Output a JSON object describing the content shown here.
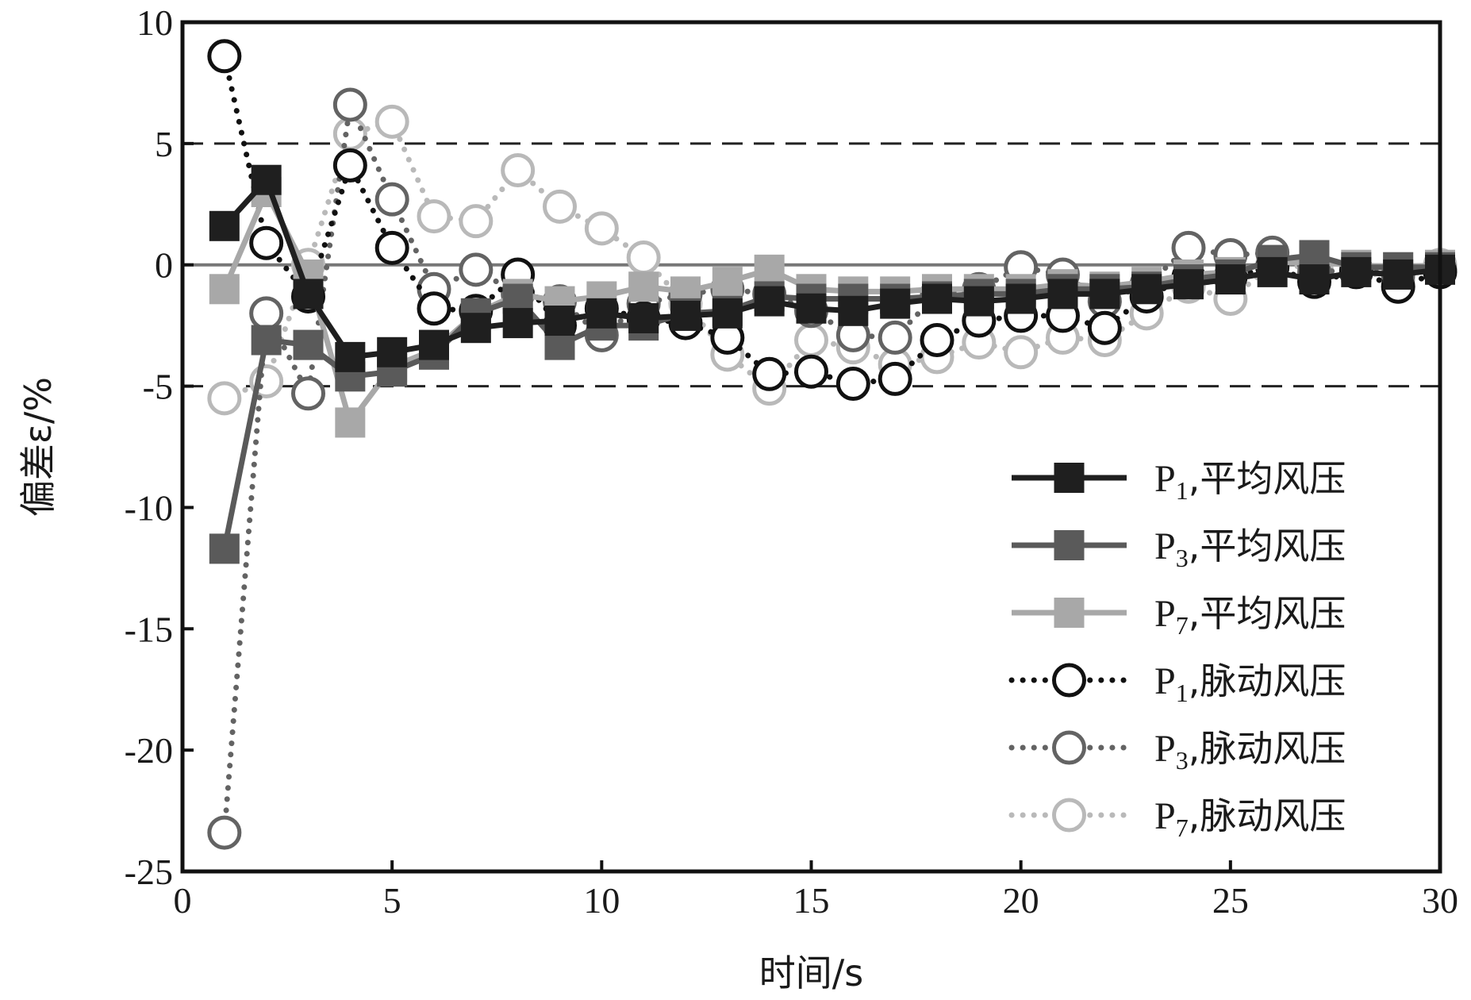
{
  "chart_data": {
    "type": "line",
    "xlabel": "时间/s",
    "ylabel": "偏差ε/%",
    "xlim": [
      0,
      30
    ],
    "ylim": [
      -25,
      10
    ],
    "xticks": [
      "0",
      "5",
      "10",
      "15",
      "20",
      "25",
      "30"
    ],
    "yticks": [
      "10",
      "5",
      "0",
      "-5",
      "-10",
      "-15",
      "-20",
      "-25"
    ],
    "reference_lines": [
      5,
      -5
    ],
    "grid": false,
    "legend_position": "lower-right",
    "series": [
      {
        "name_main": "P",
        "name_sub": "1",
        "name_suffix": ",平均风压",
        "style": "solid",
        "marker": "square",
        "color": "#1f1f1f",
        "x": [
          1,
          2,
          3,
          4,
          5,
          6,
          7,
          8,
          9,
          10,
          11,
          12,
          13,
          14,
          15,
          16,
          17,
          18,
          19,
          20,
          21,
          22,
          23,
          24,
          25,
          26,
          27,
          28,
          29,
          30
        ],
        "values": [
          1.6,
          3.5,
          -1.2,
          -3.8,
          -3.6,
          -3.3,
          -2.6,
          -2.4,
          -2.3,
          -2.0,
          -2.2,
          -2.1,
          -2.0,
          -1.5,
          -1.8,
          -1.9,
          -1.6,
          -1.4,
          -1.5,
          -1.4,
          -1.2,
          -1.2,
          -1.0,
          -0.8,
          -0.6,
          -0.3,
          -0.6,
          -0.3,
          -0.4,
          -0.2
        ]
      },
      {
        "name_main": "P",
        "name_sub": "3",
        "name_suffix": ",平均风压",
        "style": "solid",
        "marker": "square",
        "color": "#5a5a5a",
        "x": [
          1,
          2,
          3,
          4,
          5,
          6,
          7,
          8,
          9,
          10,
          11,
          12,
          13,
          14,
          15,
          16,
          17,
          18,
          19,
          20,
          21,
          22,
          23,
          24,
          25,
          26,
          27,
          28,
          29,
          30
        ],
        "values": [
          -11.7,
          -3.1,
          -3.3,
          -4.6,
          -4.4,
          -3.7,
          -2.0,
          -1.4,
          -3.3,
          -2.5,
          -2.5,
          -2.0,
          -1.9,
          -1.3,
          -1.4,
          -1.4,
          -1.4,
          -1.3,
          -1.2,
          -1.2,
          -1.0,
          -1.0,
          -0.9,
          -0.6,
          -0.4,
          0.2,
          0.4,
          -0.1,
          -0.1,
          -0.1
        ]
      },
      {
        "name_main": "P",
        "name_sub": "7",
        "name_suffix": ",平均风压",
        "style": "solid",
        "marker": "square",
        "color": "#a8a8a8",
        "x": [
          1,
          2,
          3,
          4,
          5,
          6,
          7,
          8,
          9,
          10,
          11,
          12,
          13,
          14,
          15,
          16,
          17,
          18,
          19,
          20,
          21,
          22,
          23,
          24,
          25,
          26,
          27,
          28,
          29,
          30
        ],
        "values": [
          -1.0,
          3.0,
          -0.4,
          -6.5,
          -4.2,
          -3.5,
          -2.0,
          -1.2,
          -1.5,
          -1.3,
          -0.9,
          -1.1,
          -0.7,
          -0.2,
          -1.0,
          -1.1,
          -1.1,
          -1.0,
          -1.0,
          -1.0,
          -0.8,
          -0.9,
          -0.7,
          -0.4,
          -0.3,
          0.1,
          0.1,
          0.0,
          -0.1,
          0.0
        ]
      },
      {
        "name_main": "P",
        "name_sub": "1",
        "name_suffix": ",脉动风压",
        "style": "dotted",
        "marker": "circle",
        "color": "#111111",
        "x": [
          1,
          2,
          3,
          4,
          5,
          6,
          7,
          8,
          9,
          10,
          11,
          12,
          13,
          14,
          15,
          16,
          17,
          18,
          19,
          20,
          21,
          22,
          23,
          24,
          25,
          26,
          27,
          28,
          29,
          30
        ],
        "values": [
          8.6,
          0.9,
          -1.3,
          4.1,
          0.7,
          -1.8,
          -1.9,
          -0.4,
          -2.5,
          -1.8,
          -2.2,
          -2.4,
          -3.0,
          -4.5,
          -4.4,
          -4.9,
          -4.7,
          -3.1,
          -2.3,
          -2.1,
          -2.1,
          -2.6,
          -1.3,
          -0.5,
          -0.5,
          -0.1,
          -0.7,
          -0.3,
          -0.9,
          -0.3
        ]
      },
      {
        "name_main": "P",
        "name_sub": "3",
        "name_suffix": ",脉动风压",
        "style": "dotted",
        "marker": "circle",
        "color": "#636363",
        "x": [
          1,
          2,
          3,
          4,
          5,
          6,
          7,
          8,
          9,
          10,
          11,
          12,
          13,
          14,
          15,
          16,
          17,
          18,
          19,
          20,
          21,
          22,
          23,
          24,
          25,
          26,
          27,
          28,
          29,
          30
        ],
        "values": [
          -23.4,
          -2.0,
          -5.3,
          6.6,
          2.7,
          -1.0,
          -0.2,
          -1.2,
          -1.5,
          -2.9,
          -1.6,
          -1.2,
          -1.0,
          -1.2,
          -1.9,
          -2.9,
          -3.0,
          -1.2,
          -1.0,
          -0.1,
          -0.4,
          -1.5,
          -0.8,
          0.7,
          0.4,
          0.5,
          -0.3,
          -0.2,
          -0.4,
          -0.2
        ]
      },
      {
        "name_main": "P",
        "name_sub": "7",
        "name_suffix": ",脉动风压",
        "style": "dotted",
        "marker": "circle",
        "color": "#b9b9b9",
        "x": [
          1,
          2,
          3,
          4,
          5,
          6,
          7,
          8,
          9,
          10,
          11,
          12,
          13,
          14,
          15,
          16,
          17,
          18,
          19,
          20,
          21,
          22,
          23,
          24,
          25,
          26,
          27,
          28,
          29,
          30
        ],
        "values": [
          -5.5,
          -4.8,
          0.0,
          5.4,
          5.9,
          2.0,
          1.8,
          3.9,
          2.4,
          1.5,
          0.3,
          -1.6,
          -3.7,
          -5.1,
          -3.1,
          -3.4,
          -4.1,
          -3.8,
          -3.2,
          -3.6,
          -3.0,
          -3.1,
          -2.0,
          -0.9,
          -1.4,
          0.0,
          -0.1,
          -0.2,
          -0.6,
          0.0
        ]
      }
    ]
  }
}
